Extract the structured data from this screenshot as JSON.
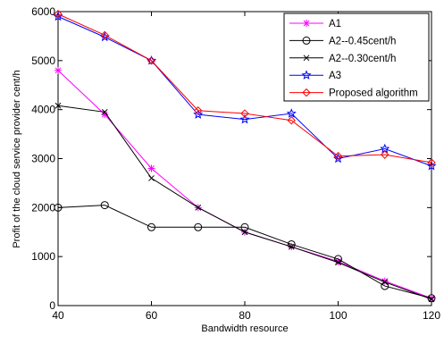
{
  "chart_data": {
    "type": "line",
    "title": "",
    "xlabel": "Bandwidth resource",
    "ylabel": "Profit of the cloud service provider  cent/h",
    "xlim": [
      40,
      120
    ],
    "ylim": [
      0,
      6000
    ],
    "x_ticks": [
      40,
      60,
      80,
      100,
      120
    ],
    "y_ticks": [
      0,
      1000,
      2000,
      3000,
      4000,
      5000,
      6000
    ],
    "grid": false,
    "legend_position": "top-right",
    "x": [
      40,
      50,
      60,
      70,
      80,
      90,
      100,
      110,
      120
    ],
    "series": [
      {
        "name": "A1",
        "color": "#ff00ff",
        "marker": "asterisk",
        "values": [
          4800,
          3900,
          2800,
          2000,
          1500,
          1200,
          900,
          500,
          150
        ]
      },
      {
        "name": "A2--0.45cent/h",
        "color": "#000000",
        "marker": "circle",
        "values": [
          2000,
          2050,
          1600,
          1600,
          1600,
          1250,
          950,
          400,
          150
        ]
      },
      {
        "name": "A2--0.30cent/h",
        "color": "#000000",
        "marker": "x",
        "values": [
          4080,
          3950,
          2600,
          2000,
          1500,
          1200,
          880,
          480,
          130
        ]
      },
      {
        "name": "A3",
        "color": "#0000ff",
        "marker": "star",
        "values": [
          5900,
          5480,
          5000,
          3900,
          3800,
          3920,
          3000,
          3200,
          2850
        ]
      },
      {
        "name": "Proposed algorithm",
        "color": "#ff0000",
        "marker": "diamond",
        "values": [
          5950,
          5520,
          5000,
          3980,
          3920,
          3780,
          3050,
          3080,
          2920
        ]
      }
    ]
  }
}
